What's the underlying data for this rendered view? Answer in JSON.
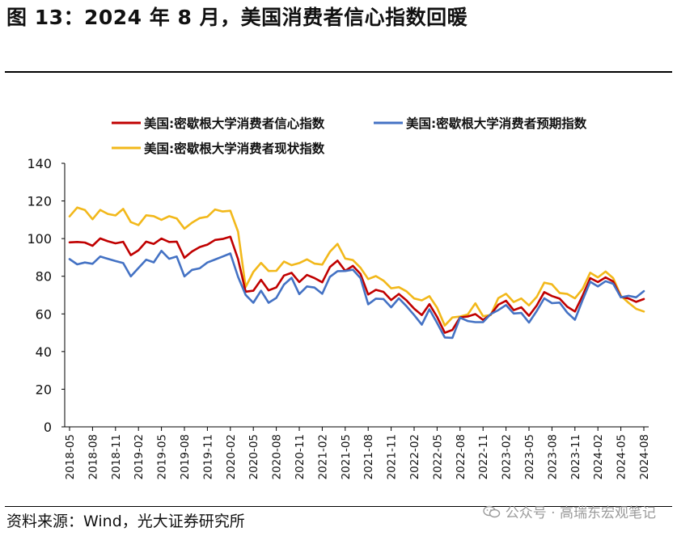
{
  "figure": {
    "title": "图 13：2024 年 8 月，美国消费者信心指数回暖",
    "source": "资料来源：Wind，光大证券研究所",
    "watermark": "公众号 · 高瑞东宏观笔记",
    "watermark_icon": "wechat-icon"
  },
  "chart_data": {
    "type": "line",
    "title": "",
    "xlabel": "",
    "ylabel": "",
    "ylim": [
      0,
      140
    ],
    "yticks": [
      0,
      20,
      40,
      60,
      80,
      100,
      120,
      140
    ],
    "tick_labels": [
      "2018-05",
      "2018-08",
      "2018-11",
      "2019-02",
      "2019-05",
      "2019-08",
      "2019-11",
      "2020-02",
      "2020-05",
      "2020-08",
      "2020-11",
      "2021-02",
      "2021-05",
      "2021-08",
      "2021-11",
      "2022-02",
      "2022-05",
      "2022-08",
      "2022-11",
      "2023-02",
      "2023-05",
      "2023-08",
      "2023-11",
      "2024-02",
      "2024-05",
      "2024-08"
    ],
    "legend_position": "top",
    "x": [
      "2018-05",
      "2018-06",
      "2018-07",
      "2018-08",
      "2018-09",
      "2018-10",
      "2018-11",
      "2018-12",
      "2019-01",
      "2019-02",
      "2019-03",
      "2019-04",
      "2019-05",
      "2019-06",
      "2019-07",
      "2019-08",
      "2019-09",
      "2019-10",
      "2019-11",
      "2019-12",
      "2020-01",
      "2020-02",
      "2020-03",
      "2020-04",
      "2020-05",
      "2020-06",
      "2020-07",
      "2020-08",
      "2020-09",
      "2020-10",
      "2020-11",
      "2020-12",
      "2021-01",
      "2021-02",
      "2021-03",
      "2021-04",
      "2021-05",
      "2021-06",
      "2021-07",
      "2021-08",
      "2021-09",
      "2021-10",
      "2021-11",
      "2021-12",
      "2022-01",
      "2022-02",
      "2022-03",
      "2022-04",
      "2022-05",
      "2022-06",
      "2022-07",
      "2022-08",
      "2022-09",
      "2022-10",
      "2022-11",
      "2022-12",
      "2023-01",
      "2023-02",
      "2023-03",
      "2023-04",
      "2023-05",
      "2023-06",
      "2023-07",
      "2023-08",
      "2023-09",
      "2023-10",
      "2023-11",
      "2023-12",
      "2024-01",
      "2024-02",
      "2024-03",
      "2024-04",
      "2024-05",
      "2024-06",
      "2024-07",
      "2024-08"
    ],
    "series": [
      {
        "name": "美国:密歇根大学消费者信心指数",
        "color": "#c00000",
        "values": [
          98.0,
          98.2,
          97.9,
          96.2,
          100.1,
          98.6,
          97.5,
          98.3,
          91.2,
          93.8,
          98.4,
          97.2,
          100.0,
          98.2,
          98.4,
          89.8,
          93.2,
          95.5,
          96.8,
          99.3,
          99.8,
          101.0,
          89.1,
          71.8,
          72.3,
          78.1,
          72.5,
          74.1,
          80.4,
          81.8,
          76.9,
          80.7,
          79.0,
          76.8,
          84.9,
          88.3,
          82.9,
          85.5,
          81.2,
          70.3,
          72.8,
          71.7,
          67.4,
          70.6,
          67.2,
          62.8,
          59.4,
          65.2,
          58.4,
          50.0,
          51.5,
          58.2,
          58.6,
          59.9,
          56.8,
          59.7,
          64.9,
          67.0,
          62.0,
          63.5,
          59.0,
          64.4,
          71.6,
          69.5,
          68.1,
          63.8,
          61.3,
          69.7,
          79.0,
          76.9,
          79.4,
          77.2,
          69.1,
          68.2,
          66.4,
          67.9
        ]
      },
      {
        "name": "美国:密歇根大学消费者预期指数",
        "color": "#4472c4",
        "values": [
          89.1,
          86.3,
          87.3,
          86.6,
          90.5,
          89.3,
          88.1,
          87.0,
          79.9,
          84.4,
          88.8,
          87.4,
          93.5,
          89.3,
          90.5,
          79.9,
          83.4,
          84.2,
          87.3,
          88.9,
          90.5,
          92.1,
          79.7,
          70.1,
          65.9,
          72.3,
          65.9,
          68.5,
          75.6,
          79.2,
          70.5,
          74.6,
          74.0,
          70.7,
          79.7,
          82.7,
          82.8,
          83.5,
          79.0,
          65.1,
          68.1,
          67.9,
          63.5,
          68.3,
          64.1,
          59.4,
          54.3,
          62.5,
          55.2,
          47.5,
          47.3,
          58.0,
          56.2,
          55.6,
          55.6,
          59.9,
          62.0,
          64.7,
          60.2,
          60.5,
          55.4,
          61.5,
          68.3,
          65.7,
          66.0,
          60.7,
          56.9,
          67.4,
          77.1,
          74.6,
          77.4,
          76.0,
          68.8,
          69.6,
          68.8,
          72.1
        ]
      },
      {
        "name": "美国:密歇根大学消费者现状指数",
        "color": "#f2b81a",
        "values": [
          111.8,
          116.5,
          115.2,
          110.3,
          115.2,
          113.1,
          112.3,
          115.8,
          108.8,
          107.2,
          112.4,
          111.9,
          110.0,
          111.9,
          110.7,
          105.3,
          108.5,
          110.9,
          111.6,
          115.5,
          114.4,
          114.8,
          103.7,
          74.3,
          82.3,
          87.1,
          82.8,
          82.9,
          87.8,
          85.9,
          87.0,
          89.0,
          86.7,
          86.2,
          93.0,
          97.2,
          89.4,
          88.6,
          84.5,
          78.5,
          80.1,
          77.7,
          73.6,
          74.2,
          72.0,
          68.2,
          67.2,
          69.4,
          63.3,
          53.8,
          58.1,
          58.6,
          59.7,
          65.6,
          58.8,
          59.4,
          68.4,
          70.7,
          66.3,
          68.2,
          64.5,
          69.0,
          76.6,
          75.7,
          71.1,
          70.6,
          68.3,
          73.3,
          81.9,
          79.4,
          82.5,
          79.0,
          69.6,
          65.9,
          62.7,
          61.3
        ]
      }
    ]
  }
}
